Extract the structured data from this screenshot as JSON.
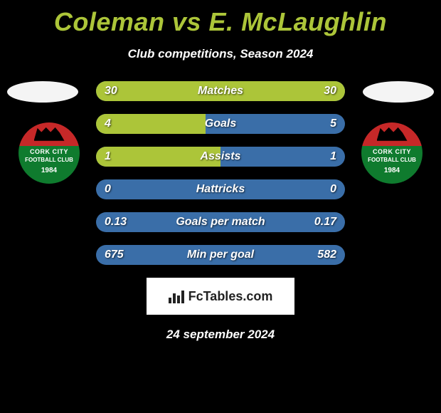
{
  "header": {
    "title_color": "#acc539",
    "player_left": "Coleman",
    "vs": "vs",
    "player_right": "E. McLaughlin",
    "subtitle": "Club competitions, Season 2024"
  },
  "ellipse_color": "#f4f4f4",
  "crest": {
    "upper_color": "#c62828",
    "lower_color": "#0f7b2e",
    "line1": "CORK CITY",
    "line2": "FOOTBALL CLUB",
    "year": "1984"
  },
  "stats": {
    "track_color": "#3a6ea8",
    "accent_color": "#acc539",
    "rows": [
      {
        "label": "Matches",
        "left": "30",
        "right": "30",
        "left_pct": 50,
        "right_pct": 50,
        "highlight": "none"
      },
      {
        "label": "Goals",
        "left": "4",
        "right": "5",
        "left_pct": 44,
        "right_pct": 0,
        "highlight": "left"
      },
      {
        "label": "Assists",
        "left": "1",
        "right": "1",
        "left_pct": 50,
        "right_pct": 0,
        "highlight": "left"
      },
      {
        "label": "Hattricks",
        "left": "0",
        "right": "0",
        "left_pct": 0,
        "right_pct": 0,
        "highlight": "none"
      },
      {
        "label": "Goals per match",
        "left": "0.13",
        "right": "0.17",
        "left_pct": 0,
        "right_pct": 0,
        "highlight": "none"
      },
      {
        "label": "Min per goal",
        "left": "675",
        "right": "582",
        "left_pct": 0,
        "right_pct": 0,
        "highlight": "none"
      }
    ]
  },
  "footer": {
    "brand": "FcTables.com",
    "date": "24 september 2024"
  }
}
